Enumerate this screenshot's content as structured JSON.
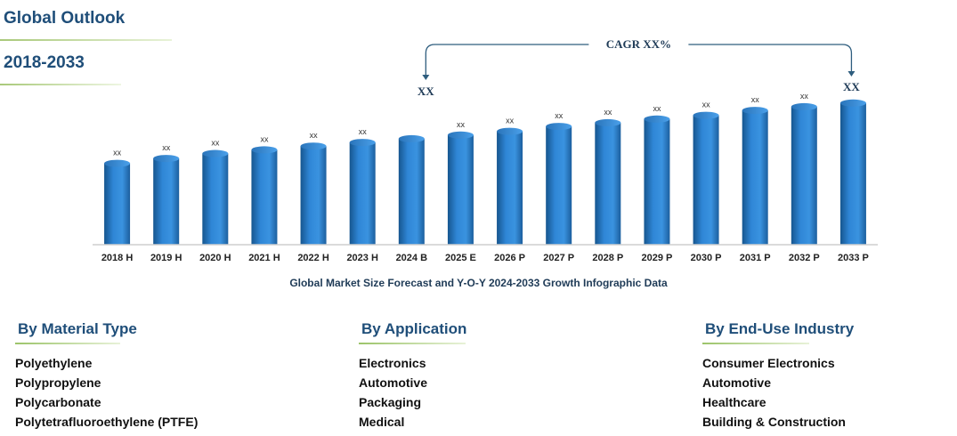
{
  "header": {
    "title": "Global Outlook",
    "period": "2018-2033"
  },
  "chart_data": {
    "type": "bar",
    "categories": [
      "2018 H",
      "2019 H",
      "2020 H",
      "2021 H",
      "2022 H",
      "2023 H",
      "2024 B",
      "2025 E",
      "2026 P",
      "2027 P",
      "2028 P",
      "2029 P",
      "2030 P",
      "2031 P",
      "2032 P",
      "2033 P"
    ],
    "values": [
      33,
      35,
      37,
      38.5,
      40,
      41.5,
      43,
      44.5,
      46,
      48,
      49.5,
      51,
      52.5,
      54.5,
      56,
      57.5
    ],
    "data_labels": [
      "xx",
      "xx",
      "xx",
      "xx",
      "xx",
      "xx",
      "",
      "xx",
      "xx",
      "xx",
      "xx",
      "xx",
      "xx",
      "xx",
      "xx",
      ""
    ],
    "ylim": [
      0,
      65
    ],
    "bar_color": "#2f86d6",
    "cagr": {
      "label": "CAGR XX%",
      "start_label": "XX",
      "end_label": "XX",
      "start_category": "2024 B",
      "end_category": "2033 P"
    },
    "caption": "Global Market Size Forecast and Y-O-Y 2024-2033 Growth Infographic Data"
  },
  "segments": [
    {
      "title": "By Material Type",
      "items": [
        "Polyethylene",
        "Polypropylene",
        "Polycarbonate",
        "Polytetrafluoroethylene (PTFE)"
      ]
    },
    {
      "title": "By Application",
      "items": [
        "Electronics",
        "Automotive",
        "Packaging",
        "Medical"
      ]
    },
    {
      "title": "By End-Use Industry",
      "items": [
        "Consumer Electronics",
        "Automotive",
        "Healthcare",
        "Building & Construction"
      ]
    }
  ]
}
